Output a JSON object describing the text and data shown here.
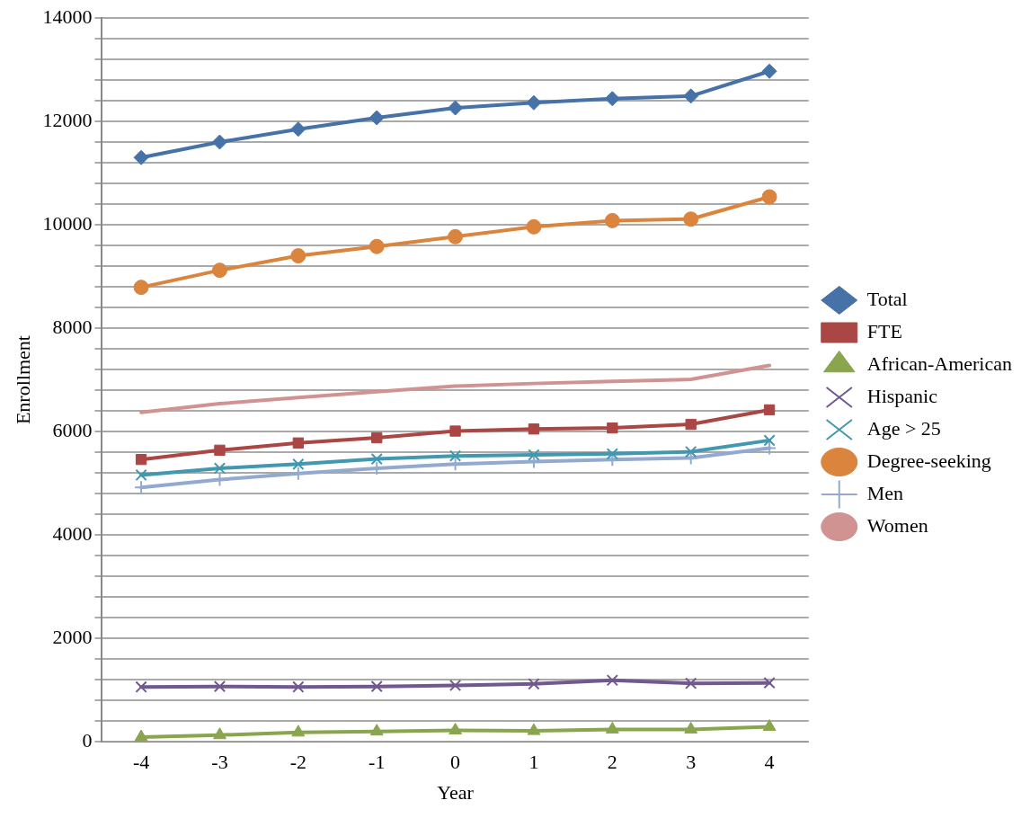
{
  "chart_data": {
    "type": "line",
    "xlabel": "Year",
    "ylabel": "Enrollment",
    "categories": [
      "-4",
      "-3",
      "-2",
      "-1",
      "0",
      "1",
      "2",
      "3",
      "4"
    ],
    "series": [
      {
        "name": "Total",
        "color": "#4672a8",
        "marker": "diamond",
        "values": [
          11300,
          11600,
          11850,
          12070,
          12260,
          12360,
          12440,
          12490,
          12970
        ]
      },
      {
        "name": "FTE",
        "color": "#aa4643",
        "marker": "square",
        "values": [
          5460,
          5640,
          5780,
          5880,
          6010,
          6050,
          6070,
          6140,
          6420
        ]
      },
      {
        "name": "African-American",
        "color": "#89a54e",
        "marker": "triangle",
        "values": [
          90,
          130,
          180,
          200,
          220,
          210,
          240,
          240,
          290
        ]
      },
      {
        "name": "Hispanic",
        "color": "#71588f",
        "marker": "cross",
        "values": [
          1060,
          1070,
          1060,
          1070,
          1090,
          1120,
          1190,
          1130,
          1140
        ]
      },
      {
        "name": "Age > 25",
        "color": "#4198af",
        "marker": "cross",
        "values": [
          5160,
          5290,
          5370,
          5470,
          5530,
          5550,
          5570,
          5610,
          5830
        ]
      },
      {
        "name": "Degree-seeking",
        "color": "#db843d",
        "marker": "circle",
        "values": [
          8790,
          9120,
          9400,
          9580,
          9770,
          9960,
          10080,
          10110,
          10540
        ]
      },
      {
        "name": "Men",
        "color": "#93a9cf",
        "marker": "plus",
        "values": [
          4920,
          5070,
          5190,
          5290,
          5370,
          5420,
          5460,
          5490,
          5680
        ]
      },
      {
        "name": "Women",
        "color": "#d19392",
        "marker": "none",
        "values": [
          6370,
          6540,
          6660,
          6770,
          6880,
          6930,
          6970,
          7010,
          7280
        ]
      }
    ],
    "ylim": [
      0,
      14000
    ],
    "yticks": [
      0,
      {
        "value": 400,
        "label": null
      },
      {
        "value": 800,
        "label": null
      },
      {
        "value": 1200,
        "label": null
      },
      {
        "value": 1600,
        "label": null
      },
      2000,
      {
        "value": 2400,
        "label": null
      },
      {
        "value": 2800,
        "label": null
      },
      {
        "value": 3200,
        "label": null
      },
      {
        "value": 3600,
        "label": null
      },
      4000,
      {
        "value": 4400,
        "label": null
      },
      {
        "value": 4800,
        "label": null
      },
      {
        "value": 5200,
        "label": null
      },
      {
        "value": 5600,
        "label": null
      },
      6000,
      {
        "value": 6400,
        "label": null
      },
      {
        "value": 6800,
        "label": null
      },
      {
        "value": 7200,
        "label": null
      },
      {
        "value": 7600,
        "label": null
      },
      8000,
      {
        "value": 8400,
        "label": null
      },
      {
        "value": 8800,
        "label": null
      },
      {
        "value": 9200,
        "label": null
      },
      {
        "value": 9600,
        "label": null
      },
      10000,
      {
        "value": 10400,
        "label": null
      },
      {
        "value": 10800,
        "label": null
      },
      {
        "value": 11200,
        "label": null
      },
      {
        "value": 11600,
        "label": null
      },
      12000,
      {
        "value": 12400,
        "label": null
      },
      {
        "value": 12800,
        "label": null
      },
      {
        "value": 13200,
        "label": null
      },
      {
        "value": 13600,
        "label": null
      },
      14000
    ],
    "grid": "y",
    "legend": "right"
  }
}
